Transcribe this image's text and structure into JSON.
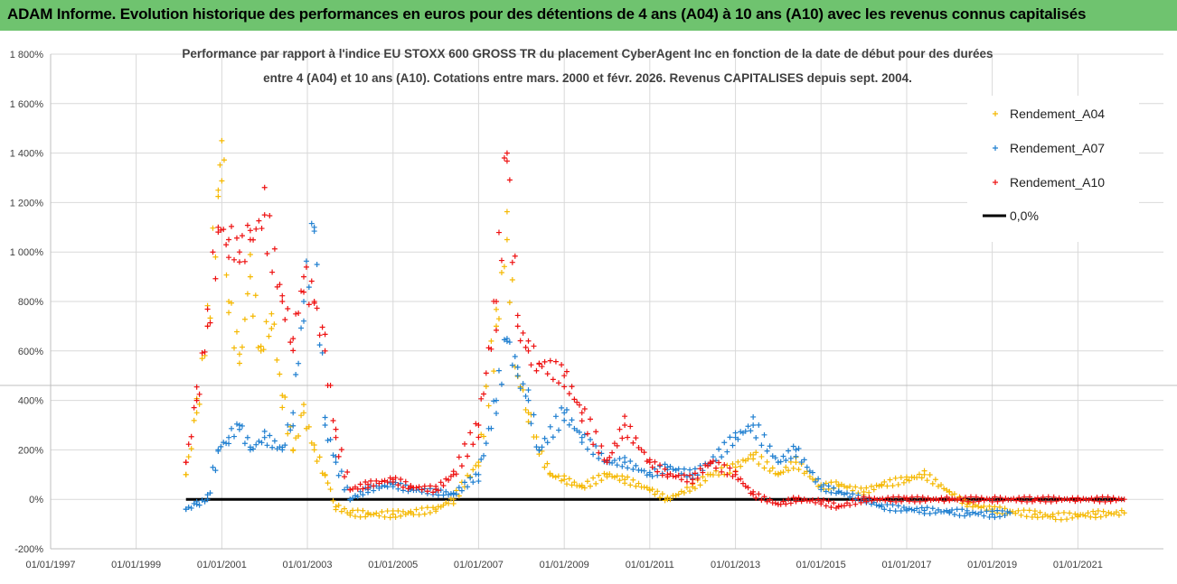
{
  "header": {
    "title": "ADAM Informe. Evolution historique des performances en euros pour des détentions de 4 ans (A04) à 10 ans (A10) avec les revenus connus capitalisés"
  },
  "colors": {
    "banner": "#6fc36f",
    "A04": "#f5b800",
    "A07": "#1f7fd0",
    "A10": "#ee1111",
    "zero": "#000000",
    "grid": "#d9d9d9"
  },
  "chart_data": {
    "type": "scatter",
    "title_lines": [
      "Performance par rapport à l'indice EU STOXX 600 GROSS TR  du placement CyberAgent Inc en fonction de la date de début pour des durées",
      "entre 4 (A04) et 10 ans (A10). Cotations entre mars. 2000 et févr. 2026. Revenus CAPITALISES depuis sept. 2004."
    ],
    "x_ticks": [
      "01/01/1997",
      "01/01/1999",
      "01/01/2001",
      "01/01/2003",
      "01/01/2005",
      "01/01/2007",
      "01/01/2009",
      "01/01/2011",
      "01/01/2013",
      "01/01/2015",
      "01/01/2017",
      "01/01/2019",
      "01/01/2021"
    ],
    "y_ticks": [
      "-200%",
      "0%",
      "200%",
      "400%",
      "600%",
      "800%",
      "1 000%",
      "1 200%",
      "1 400%",
      "1 600%",
      "1 800%"
    ],
    "xlim": [
      "1997-01-01",
      "2023-01-01"
    ],
    "ylim": [
      -200,
      1800
    ],
    "grid": true,
    "legend_position": "top-right",
    "legend": [
      "Rendement_A04",
      "Rendement_A07",
      "Rendement_A10",
      "0,0%"
    ],
    "reference_line": {
      "name": "0,0%",
      "y": 0,
      "x_start": "2000-03-01",
      "x_end": "2022-02-01"
    },
    "series": [
      {
        "name": "Rendement_A04",
        "key": "A04",
        "points": [
          [
            "2000-03-01",
            100
          ],
          [
            "2000-06-01",
            350
          ],
          [
            "2000-09-01",
            700
          ],
          [
            "2000-12-01",
            1250
          ],
          [
            "2001-01-01",
            1450
          ],
          [
            "2001-03-01",
            800
          ],
          [
            "2001-06-01",
            550
          ],
          [
            "2001-09-01",
            900
          ],
          [
            "2001-12-01",
            600
          ],
          [
            "2002-03-01",
            750
          ],
          [
            "2002-06-01",
            420
          ],
          [
            "2002-09-01",
            200
          ],
          [
            "2002-12-01",
            350
          ],
          [
            "2003-03-01",
            200
          ],
          [
            "2003-06-01",
            100
          ],
          [
            "2003-09-01",
            -30
          ],
          [
            "2004-01-01",
            -55
          ],
          [
            "2004-06-01",
            -60
          ],
          [
            "2005-01-01",
            -60
          ],
          [
            "2005-06-01",
            -55
          ],
          [
            "2006-01-01",
            -40
          ],
          [
            "2006-06-01",
            0
          ],
          [
            "2007-01-01",
            150
          ],
          [
            "2007-06-01",
            700
          ],
          [
            "2007-09-01",
            1050
          ],
          [
            "2007-12-01",
            500
          ],
          [
            "2008-03-01",
            350
          ],
          [
            "2008-06-01",
            200
          ],
          [
            "2008-09-01",
            100
          ],
          [
            "2009-01-01",
            80
          ],
          [
            "2009-06-01",
            50
          ],
          [
            "2010-01-01",
            100
          ],
          [
            "2010-06-01",
            80
          ],
          [
            "2011-01-01",
            40
          ],
          [
            "2011-06-01",
            0
          ],
          [
            "2012-01-01",
            50
          ],
          [
            "2012-06-01",
            100
          ],
          [
            "2013-01-01",
            130
          ],
          [
            "2013-06-01",
            180
          ],
          [
            "2014-01-01",
            100
          ],
          [
            "2014-06-01",
            150
          ],
          [
            "2015-01-01",
            50
          ],
          [
            "2015-06-01",
            60
          ],
          [
            "2016-01-01",
            30
          ],
          [
            "2016-06-01",
            60
          ],
          [
            "2017-01-01",
            80
          ],
          [
            "2017-06-01",
            100
          ],
          [
            "2018-01-01",
            30
          ],
          [
            "2018-06-01",
            -20
          ],
          [
            "2019-01-01",
            -40
          ],
          [
            "2019-06-01",
            -50
          ],
          [
            "2020-01-01",
            -60
          ],
          [
            "2020-06-01",
            -70
          ],
          [
            "2021-01-01",
            -65
          ],
          [
            "2021-06-01",
            -60
          ],
          [
            "2022-02-01",
            -55
          ]
        ]
      },
      {
        "name": "Rendement_A07",
        "key": "A07",
        "points": [
          [
            "2000-03-01",
            -40
          ],
          [
            "2000-06-01",
            -20
          ],
          [
            "2000-09-01",
            0
          ],
          [
            "2000-12-01",
            200
          ],
          [
            "2001-03-01",
            250
          ],
          [
            "2001-06-01",
            300
          ],
          [
            "2001-09-01",
            200
          ],
          [
            "2002-01-01",
            250
          ],
          [
            "2002-06-01",
            200
          ],
          [
            "2002-09-01",
            350
          ],
          [
            "2002-12-01",
            800
          ],
          [
            "2003-03-01",
            1100
          ],
          [
            "2003-06-01",
            300
          ],
          [
            "2003-09-01",
            150
          ],
          [
            "2004-01-01",
            0
          ],
          [
            "2004-06-01",
            40
          ],
          [
            "2005-01-01",
            60
          ],
          [
            "2005-06-01",
            40
          ],
          [
            "2006-01-01",
            30
          ],
          [
            "2006-06-01",
            20
          ],
          [
            "2007-01-01",
            100
          ],
          [
            "2007-06-01",
            400
          ],
          [
            "2007-09-01",
            650
          ],
          [
            "2007-12-01",
            500
          ],
          [
            "2008-03-01",
            400
          ],
          [
            "2008-06-01",
            200
          ],
          [
            "2009-01-01",
            350
          ],
          [
            "2009-06-01",
            250
          ],
          [
            "2010-01-01",
            150
          ],
          [
            "2010-06-01",
            150
          ],
          [
            "2011-01-01",
            100
          ],
          [
            "2011-06-01",
            130
          ],
          [
            "2012-01-01",
            100
          ],
          [
            "2012-06-01",
            150
          ],
          [
            "2013-01-01",
            250
          ],
          [
            "2013-06-01",
            300
          ],
          [
            "2014-01-01",
            150
          ],
          [
            "2014-06-01",
            200
          ],
          [
            "2015-01-01",
            50
          ],
          [
            "2015-06-01",
            30
          ],
          [
            "2016-01-01",
            0
          ],
          [
            "2016-06-01",
            -30
          ],
          [
            "2017-01-01",
            -40
          ],
          [
            "2017-06-01",
            -45
          ],
          [
            "2018-01-01",
            -50
          ],
          [
            "2018-06-01",
            -55
          ],
          [
            "2019-01-01",
            -60
          ],
          [
            "2019-06-01",
            -55
          ]
        ]
      },
      {
        "name": "Rendement_A10",
        "key": "A10",
        "points": [
          [
            "2000-03-01",
            150
          ],
          [
            "2000-06-01",
            400
          ],
          [
            "2000-09-01",
            700
          ],
          [
            "2000-12-01",
            1100
          ],
          [
            "2001-03-01",
            1050
          ],
          [
            "2001-06-01",
            1000
          ],
          [
            "2001-09-01",
            1050
          ],
          [
            "2002-01-01",
            1150
          ],
          [
            "2002-06-01",
            800
          ],
          [
            "2002-09-01",
            650
          ],
          [
            "2002-12-01",
            900
          ],
          [
            "2003-03-01",
            800
          ],
          [
            "2003-06-01",
            600
          ],
          [
            "2003-09-01",
            250
          ],
          [
            "2004-01-01",
            40
          ],
          [
            "2004-06-01",
            60
          ],
          [
            "2005-01-01",
            80
          ],
          [
            "2005-06-01",
            50
          ],
          [
            "2006-01-01",
            40
          ],
          [
            "2006-06-01",
            100
          ],
          [
            "2007-01-01",
            300
          ],
          [
            "2007-06-01",
            800
          ],
          [
            "2007-09-01",
            1400
          ],
          [
            "2007-12-01",
            700
          ],
          [
            "2008-03-01",
            600
          ],
          [
            "2008-06-01",
            550
          ],
          [
            "2009-01-01",
            500
          ],
          [
            "2009-06-01",
            350
          ],
          [
            "2010-01-01",
            150
          ],
          [
            "2010-06-01",
            300
          ],
          [
            "2011-01-01",
            150
          ],
          [
            "2011-06-01",
            100
          ],
          [
            "2012-01-01",
            80
          ],
          [
            "2012-06-01",
            150
          ],
          [
            "2013-01-01",
            100
          ],
          [
            "2013-06-01",
            20
          ],
          [
            "2014-01-01",
            -20
          ],
          [
            "2014-06-01",
            0
          ],
          [
            "2015-01-01",
            -10
          ],
          [
            "2015-06-01",
            -30
          ],
          [
            "2016-01-01",
            0
          ],
          [
            "2017-01-01",
            0
          ],
          [
            "2018-01-01",
            0
          ],
          [
            "2019-01-01",
            0
          ],
          [
            "2020-01-01",
            0
          ],
          [
            "2021-01-01",
            0
          ],
          [
            "2022-02-01",
            0
          ]
        ]
      }
    ]
  }
}
